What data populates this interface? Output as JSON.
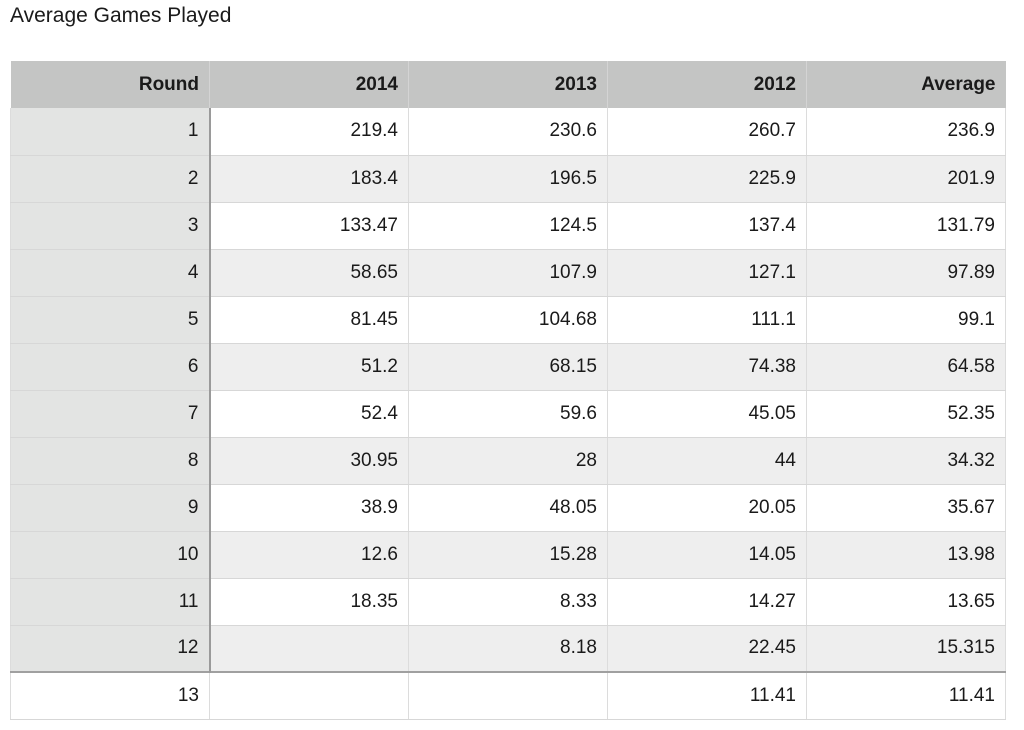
{
  "title": "Average Games Played",
  "table": {
    "headers": [
      "Round",
      "2014",
      "2013",
      "2012",
      "Average"
    ],
    "rows": [
      [
        "1",
        "219.4",
        "230.6",
        "260.7",
        "236.9"
      ],
      [
        "2",
        "183.4",
        "196.5",
        "225.9",
        "201.9"
      ],
      [
        "3",
        "133.47",
        "124.5",
        "137.4",
        "131.79"
      ],
      [
        "4",
        "58.65",
        "107.9",
        "127.1",
        "97.89"
      ],
      [
        "5",
        "81.45",
        "104.68",
        "111.1",
        "99.1"
      ],
      [
        "6",
        "51.2",
        "68.15",
        "74.38",
        "64.58"
      ],
      [
        "7",
        "52.4",
        "59.6",
        "45.05",
        "52.35"
      ],
      [
        "8",
        "30.95",
        "28",
        "44",
        "34.32"
      ],
      [
        "9",
        "38.9",
        "48.05",
        "20.05",
        "35.67"
      ],
      [
        "10",
        "12.6",
        "15.28",
        "14.05",
        "13.98"
      ],
      [
        "11",
        "18.35",
        "8.33",
        "14.27",
        "13.65"
      ],
      [
        "12",
        "",
        "8.18",
        "22.45",
        "15.315"
      ]
    ],
    "footer_row": [
      "13",
      "",
      "",
      "11.41",
      "11.41"
    ]
  }
}
